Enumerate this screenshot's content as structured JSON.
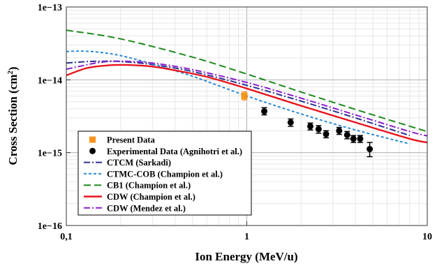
{
  "chart_data": {
    "type": "line",
    "xlabel": "Ion Energy (MeV/u)",
    "ylabel": "Cross Section (cm",
    "ylabel_sup": "2",
    "ylabel_end": ")",
    "xscale": "log",
    "yscale": "log",
    "xlim": [
      0.1,
      10
    ],
    "ylim": [
      1e-16,
      1e-13
    ],
    "x_ticks": [
      {
        "value": 0.1,
        "label": "0,1"
      },
      {
        "value": 1,
        "label": "1"
      },
      {
        "value": 10,
        "label": "10"
      }
    ],
    "y_ticks": [
      {
        "value": 1e-16,
        "label": "1e−16"
      },
      {
        "value": 1e-15,
        "label": "1e−15"
      },
      {
        "value": 1e-14,
        "label": "1e−14"
      },
      {
        "value": 1e-13,
        "label": "1e−13"
      }
    ],
    "grid": true,
    "legend_position": "bottom-left",
    "series": [
      {
        "name": "Present Data",
        "kind": "points",
        "marker": "square",
        "color": "#f7941d",
        "x": [
          0.97
        ],
        "y": [
          6e-15
        ],
        "yerr_low": [
          5.3e-15
        ],
        "yerr_high": [
          6.8e-15
        ]
      },
      {
        "name": "Experimental Data (Agnihotri et al.)",
        "kind": "points",
        "marker": "circle",
        "color": "#000000",
        "x": [
          1.25,
          1.75,
          2.25,
          2.5,
          2.75,
          3.25,
          3.6,
          3.9,
          4.25,
          4.8
        ],
        "y": [
          3.7e-15,
          2.6e-15,
          2.3e-15,
          2.1e-15,
          1.8e-15,
          2e-15,
          1.75e-15,
          1.55e-15,
          1.55e-15,
          1.12e-15
        ],
        "yerr_low": [
          3.3e-15,
          2.3e-15,
          2.05e-15,
          1.85e-15,
          1.6e-15,
          1.78e-15,
          1.55e-15,
          1.38e-15,
          1.38e-15,
          8.8e-16
        ],
        "yerr_high": [
          4.15e-15,
          2.9e-15,
          2.55e-15,
          2.35e-15,
          2e-15,
          2.22e-15,
          1.95e-15,
          1.72e-15,
          1.72e-15,
          1.38e-15
        ]
      },
      {
        "name": "CTCM (Sarkadi)",
        "kind": "line",
        "dash": "dashdot",
        "color": "#2e3192",
        "x": [
          0.1,
          0.13,
          0.16,
          0.2,
          0.3,
          0.5,
          1,
          2,
          4,
          8
        ],
        "y": [
          1.7e-14,
          1.78e-14,
          1.8e-14,
          1.78e-14,
          1.62e-14,
          1.3e-14,
          8.4e-15,
          5.1e-15,
          3e-15,
          1.72e-15
        ]
      },
      {
        "name": "CTMC-COB (Champion et al.)",
        "kind": "line",
        "dash": "dashed",
        "color": "#2b8ad4",
        "x": [
          0.1,
          0.12,
          0.15,
          0.2,
          0.3,
          0.5,
          1,
          2,
          4,
          8
        ],
        "y": [
          2.45e-14,
          2.48e-14,
          2.4e-14,
          2.15e-14,
          1.65e-14,
          1.12e-14,
          6e-15,
          3.4e-15,
          2.05e-15,
          1.32e-15
        ]
      },
      {
        "name": "CB1 (Champion et al.)",
        "kind": "line",
        "dash": "longdash",
        "color": "#1e8a1e",
        "x": [
          0.1,
          0.2,
          0.5,
          1,
          2,
          5,
          10
        ],
        "y": [
          4.8e-14,
          3.65e-14,
          2.05e-14,
          1.2e-14,
          6.8e-15,
          3.3e-15,
          1.95e-15
        ]
      },
      {
        "name": "CDW (Champion et al.)",
        "kind": "line",
        "dash": "solid",
        "color": "#e8141b",
        "x": [
          0.1,
          0.13,
          0.17,
          0.22,
          0.3,
          0.4,
          0.6,
          1,
          2,
          4,
          8,
          10
        ],
        "y": [
          1.15e-14,
          1.45e-14,
          1.58e-14,
          1.6e-14,
          1.52e-14,
          1.35e-14,
          1.1e-14,
          7.6e-15,
          4.4e-15,
          2.6e-15,
          1.55e-15,
          1.38e-15
        ]
      },
      {
        "name": "CDW (Mendez et al.)",
        "kind": "line",
        "dash": "dashdot",
        "color": "#8b20cc",
        "x": [
          0.1,
          0.15,
          0.2,
          0.3,
          0.5,
          1,
          2,
          4,
          8,
          10
        ],
        "y": [
          1.4e-14,
          1.72e-14,
          1.8e-14,
          1.7e-14,
          1.38e-14,
          9.2e-15,
          5.6e-15,
          3.3e-15,
          1.95e-15,
          1.7e-15
        ]
      }
    ]
  }
}
